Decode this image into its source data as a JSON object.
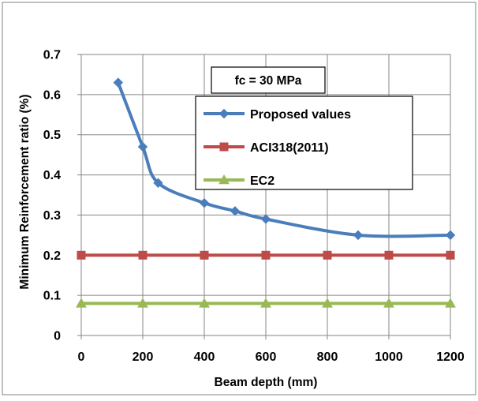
{
  "chart_data": {
    "type": "line",
    "title": "",
    "annotation": "fc = 30 MPa",
    "xlabel": "Beam depth (mm)",
    "ylabel": "Minimum Reinforcement ratio (%)",
    "xlim": [
      0,
      1200
    ],
    "ylim": [
      0,
      0.7
    ],
    "x_ticks": [
      0,
      200,
      400,
      600,
      800,
      1000,
      1200
    ],
    "y_ticks": [
      0,
      0.1,
      0.2,
      0.3,
      0.4,
      0.5,
      0.6,
      0.7
    ],
    "x_tick_labels": [
      "0",
      "200",
      "400",
      "600",
      "800",
      "1000",
      "1200"
    ],
    "y_tick_labels": [
      "0",
      "0.1",
      "0.2",
      "0.3",
      "0.4",
      "0.5",
      "0.6",
      "0.7"
    ],
    "grid": true,
    "legend_position": "upper-right",
    "series": [
      {
        "name": "Proposed values",
        "color": "#4a7ebb",
        "marker": "diamond",
        "smooth": true,
        "x": [
          120,
          200,
          250,
          400,
          500,
          600,
          900,
          1200
        ],
        "y": [
          0.63,
          0.47,
          0.38,
          0.33,
          0.31,
          0.29,
          0.25,
          0.25
        ]
      },
      {
        "name": "ACI318(2011)",
        "color": "#be4b48",
        "marker": "square",
        "smooth": false,
        "x": [
          0,
          200,
          400,
          600,
          800,
          1000,
          1200
        ],
        "y": [
          0.2,
          0.2,
          0.2,
          0.2,
          0.2,
          0.2,
          0.2
        ]
      },
      {
        "name": "EC2",
        "color": "#98b954",
        "marker": "triangle",
        "smooth": false,
        "x": [
          0,
          200,
          400,
          600,
          800,
          1000,
          1200
        ],
        "y": [
          0.08,
          0.08,
          0.08,
          0.08,
          0.08,
          0.08,
          0.08
        ]
      }
    ]
  }
}
